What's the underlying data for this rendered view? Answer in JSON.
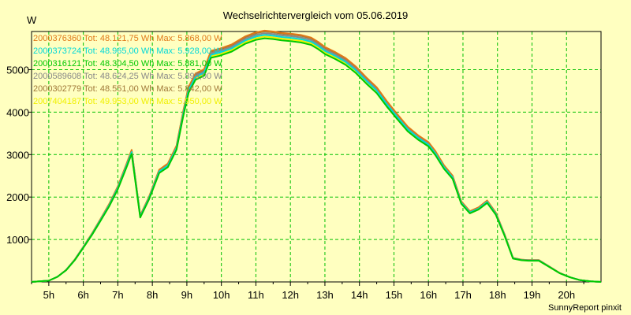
{
  "footer": "SunnyReport pinxit",
  "chart_data": {
    "type": "line",
    "title": "Wechselrichtervergleich vom 05.06.2019",
    "ylabel": "W",
    "xlabel": "",
    "xlim": [
      4.5,
      21
    ],
    "ylim": [
      0,
      5900
    ],
    "grid": true,
    "legend_position": "top-left",
    "yticks": [
      1000,
      2000,
      3000,
      4000,
      5000
    ],
    "xticks": [
      {
        "v": 5,
        "label": "5h"
      },
      {
        "v": 6,
        "label": "6h"
      },
      {
        "v": 7,
        "label": "7h"
      },
      {
        "v": 8,
        "label": "8h"
      },
      {
        "v": 9,
        "label": "9h"
      },
      {
        "v": 10,
        "label": "10h"
      },
      {
        "v": 11,
        "label": "11h"
      },
      {
        "v": 12,
        "label": "12h"
      },
      {
        "v": 13,
        "label": "13h"
      },
      {
        "v": 14,
        "label": "14h"
      },
      {
        "v": 15,
        "label": "15h"
      },
      {
        "v": 16,
        "label": "16h"
      },
      {
        "v": 17,
        "label": "17h"
      },
      {
        "v": 18,
        "label": "18h"
      },
      {
        "v": 19,
        "label": "19h"
      },
      {
        "v": 20,
        "label": "20h"
      }
    ],
    "series": [
      {
        "name": "2000376360 Tot: 48.121,75 Wh Max: 5.868,00 W",
        "color": "#e07818",
        "offset": 60
      },
      {
        "name": "2000373724 Tot: 48.965,00 Wh Max: 5.928,00 W",
        "color": "#00d8d8",
        "offset": -40
      },
      {
        "name": "2000316121 Tot: 48.304,50 Wh Max: 5.881,00 W",
        "color": "#00c800",
        "offset": -120
      },
      {
        "name": "2000589608 Tot: 48.624,25 Wh Max: 5.893,00 W",
        "color": "#888888",
        "offset": 0
      },
      {
        "name": "2000302779 Tot: 48.551,00 Wh Max: 5.842,00 W",
        "color": "#a07838",
        "offset": 40
      },
      {
        "name": "2007404187 Tot: 49.953,00 Wh Max: 5.950,00 W",
        "color": "#f0f000",
        "offset": -80
      }
    ],
    "x": [
      4.5,
      5.0,
      5.25,
      5.5,
      5.75,
      6.0,
      6.25,
      6.5,
      6.75,
      7.0,
      7.25,
      7.4,
      7.65,
      7.9,
      8.2,
      8.45,
      8.7,
      8.9,
      9.05,
      9.25,
      9.5,
      9.7,
      9.95,
      10.3,
      10.7,
      11.0,
      11.25,
      11.5,
      11.75,
      12.0,
      12.3,
      12.6,
      12.8,
      13.0,
      13.3,
      13.6,
      13.9,
      14.2,
      14.5,
      14.8,
      15.1,
      15.4,
      15.7,
      16.0,
      16.2,
      16.45,
      16.7,
      16.95,
      17.2,
      17.45,
      17.7,
      17.95,
      18.2,
      18.45,
      18.7,
      18.9,
      19.2,
      19.5,
      19.8,
      20.1,
      20.4,
      20.7,
      21.0
    ],
    "values": [
      0,
      30,
      120,
      280,
      520,
      820,
      1130,
      1470,
      1820,
      2230,
      2750,
      3080,
      1550,
      1980,
      2620,
      2760,
      3180,
      4000,
      4550,
      4860,
      4960,
      5390,
      5440,
      5540,
      5730,
      5820,
      5860,
      5840,
      5810,
      5790,
      5760,
      5700,
      5600,
      5480,
      5360,
      5220,
      5020,
      4770,
      4540,
      4210,
      3910,
      3620,
      3420,
      3260,
      3050,
      2720,
      2480,
      1880,
      1650,
      1740,
      1900,
      1620,
      1120,
      560,
      520,
      510,
      510,
      360,
      210,
      110,
      40,
      15,
      0
    ]
  }
}
